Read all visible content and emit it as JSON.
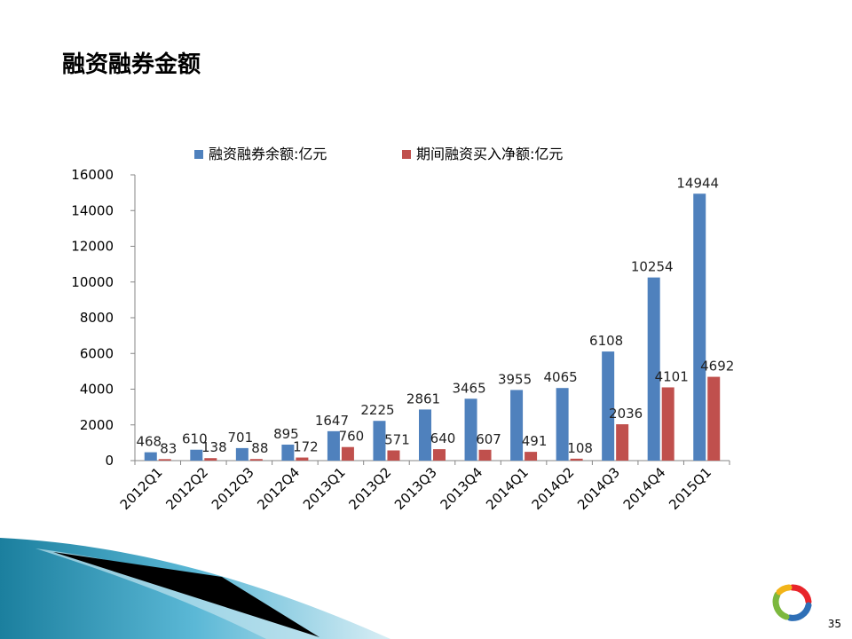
{
  "slide": {
    "title": "融资融券金额",
    "page_number": "35"
  },
  "colors": {
    "series1": "#4F81BD",
    "series2": "#C0504D",
    "axis": "#868686",
    "grid": "#000000"
  },
  "chart_data": {
    "type": "bar",
    "title": "",
    "xlabel": "",
    "ylabel": "",
    "ylim": [
      0,
      16000
    ],
    "yticks": [
      0,
      2000,
      4000,
      6000,
      8000,
      10000,
      12000,
      14000,
      16000
    ],
    "grid": false,
    "legend": "top",
    "categories": [
      "2012Q1",
      "2012Q2",
      "2012Q3",
      "2012Q4",
      "2013Q1",
      "2013Q2",
      "2013Q3",
      "2013Q4",
      "2014Q1",
      "2014Q2",
      "2014Q3",
      "2014Q4",
      "2015Q1"
    ],
    "series": [
      {
        "name": "融资融券余额:亿元",
        "values": [
          468,
          610,
          701,
          895,
          1647,
          2225,
          2861,
          3465,
          3955,
          4065,
          6108,
          10254,
          14944
        ]
      },
      {
        "name": "期间融资买入净额:亿元",
        "values": [
          83,
          138,
          88,
          172,
          760,
          571,
          640,
          607,
          491,
          108,
          2036,
          4101,
          4692
        ]
      }
    ]
  }
}
